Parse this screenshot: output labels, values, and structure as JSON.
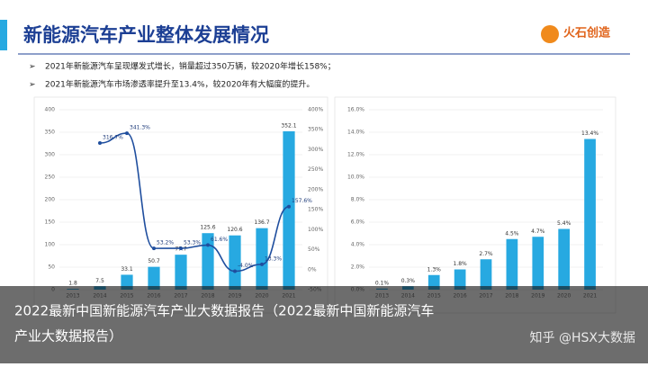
{
  "header": {
    "title": "新能源汽车产业整体发展情况",
    "logo": "火石创造",
    "bullets": [
      "2021年新能源汽车呈现爆发式增长，销量超过350万辆，较2020年增长158%；",
      "2021年新能源汽车市场渗透率提升至13.4%，较2020年有大幅度的提升。"
    ]
  },
  "chart_data": [
    {
      "type": "combo",
      "categories": [
        "2013",
        "2014",
        "2015",
        "2016",
        "2017",
        "2018",
        "2019",
        "2020",
        "2021"
      ],
      "series": [
        {
          "type": "bar",
          "color": "#27a9e1",
          "values": [
            1.8,
            7.5,
            33.1,
            50.7,
            77.7,
            125.6,
            120.6,
            136.7,
            352.1
          ]
        },
        {
          "type": "line",
          "axis": "y2",
          "color": "#1f4e9e",
          "values": [
            null,
            316.7,
            341.3,
            53.2,
            53.3,
            61.6,
            -4.0,
            13.3,
            157.6
          ],
          "value_labels": [
            null,
            "316.7%",
            "341.3%",
            "53.2%",
            "53.3%",
            "61.6%",
            "-4.0%",
            "13.3%",
            "157.6%"
          ]
        }
      ],
      "ylim": [
        0,
        400
      ],
      "yticks": [
        0,
        50,
        100,
        150,
        200,
        250,
        300,
        350,
        400
      ],
      "y2lim": [
        -50,
        400
      ],
      "y2ticks": [
        {
          "value": -50,
          "label": "-50%"
        },
        {
          "value": 0,
          "label": "0%"
        },
        {
          "value": 50,
          "label": "50%"
        },
        {
          "value": 100,
          "label": "100%"
        },
        {
          "value": 150,
          "label": "150%"
        },
        {
          "value": 200,
          "label": "200%"
        },
        {
          "value": 250,
          "label": "250%"
        },
        {
          "value": 300,
          "label": "300%"
        },
        {
          "value": 350,
          "label": "350%"
        },
        {
          "value": 400,
          "label": "400%"
        }
      ]
    },
    {
      "type": "bar",
      "categories": [
        "2013",
        "2014",
        "2015",
        "2016",
        "2017",
        "2018",
        "2019",
        "2020",
        "2021"
      ],
      "color": "#27a9e1",
      "values": [
        0.1,
        0.3,
        1.3,
        1.8,
        2.7,
        4.5,
        4.7,
        5.4,
        13.4
      ],
      "value_labels": [
        "0.1%",
        "0.3%",
        "1.3%",
        "1.8%",
        "2.7%",
        "4.5%",
        "4.7%",
        "5.4%",
        "13.4%"
      ],
      "ylim": [
        0,
        16
      ],
      "yticks": [
        {
          "value": 0,
          "label": "0.0%"
        },
        {
          "value": 2,
          "label": "2.0%"
        },
        {
          "value": 4,
          "label": "4.0%"
        },
        {
          "value": 6,
          "label": "6.0%"
        },
        {
          "value": 8,
          "label": "8.0%"
        },
        {
          "value": 10,
          "label": "10.0%"
        },
        {
          "value": 12,
          "label": "12.0%"
        },
        {
          "value": 14,
          "label": "14.0%"
        },
        {
          "value": 16,
          "label": "16.0%"
        }
      ]
    }
  ],
  "caption": [
    "2022最新中国新能源汽车产业大数据报告（2022最新中国新能源汽车",
    "产业大数据报告）"
  ],
  "watermark": "知乎 @HSX大数据"
}
